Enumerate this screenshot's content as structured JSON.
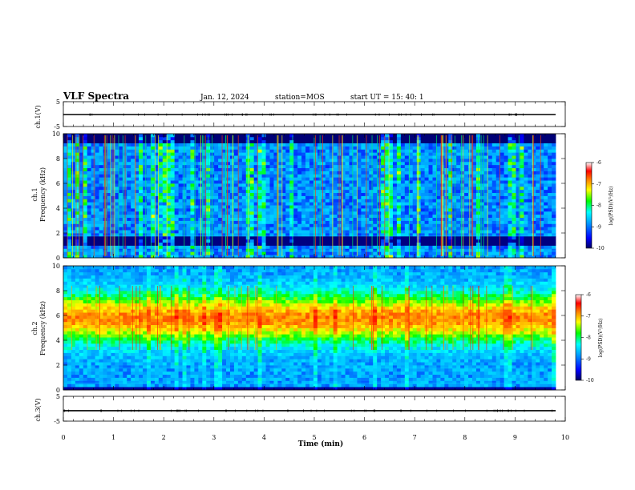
{
  "header": {
    "title": "VLF Spectra",
    "date": "Jan. 12, 2024",
    "station": "station=MOS",
    "start": "start UT =  15: 40: 1"
  },
  "chart_data": [
    {
      "type": "line",
      "name": "ch1-waveform",
      "ylabel": "ch.1(V)",
      "ylim": [
        -5,
        5
      ],
      "yticks": [
        "5",
        "-5"
      ],
      "xlim": [
        0,
        10
      ],
      "level": -0.2
    },
    {
      "type": "heatmap",
      "name": "ch1-spectrogram",
      "ylabel": "ch.1\nFrequency (kHz)",
      "ylim": [
        0,
        10
      ],
      "yticks": [
        "0",
        "2",
        "4",
        "6",
        "8",
        "10"
      ],
      "xlim": [
        0,
        10
      ],
      "colorbar": {
        "label": "log(PSD)(V²/Hz)",
        "range": [
          -10,
          -6
        ],
        "ticks": [
          "-6",
          "-7",
          "-8",
          "-9",
          "-10"
        ]
      }
    },
    {
      "type": "heatmap",
      "name": "ch2-spectrogram",
      "ylabel": "ch.2\nFrequency (kHz)",
      "ylim": [
        0,
        10
      ],
      "yticks": [
        "0",
        "2",
        "4",
        "6",
        "8",
        "10"
      ],
      "xlim": [
        0,
        10
      ],
      "colorbar": {
        "label": "log(PSD)(V²/Hz)",
        "range": [
          -10,
          -6
        ],
        "ticks": [
          "-6",
          "-7",
          "-8",
          "-9",
          "-10"
        ]
      }
    },
    {
      "type": "line",
      "name": "ch3-waveform",
      "ylabel": "ch.3(V)",
      "ylim": [
        -5,
        5
      ],
      "yticks": [
        "5",
        "-5"
      ],
      "xlim": [
        0,
        10
      ],
      "level": -0.8
    }
  ],
  "xaxis": {
    "label": "Time (min)",
    "ticks": [
      "0",
      "1",
      "2",
      "3",
      "4",
      "5",
      "6",
      "7",
      "8",
      "9",
      "10"
    ]
  },
  "colormap": [
    "#000080",
    "#0000ff",
    "#00a0ff",
    "#00ffff",
    "#00ff60",
    "#a0ff00",
    "#ffff00",
    "#ff8000",
    "#ff0000",
    "#ffffff"
  ]
}
